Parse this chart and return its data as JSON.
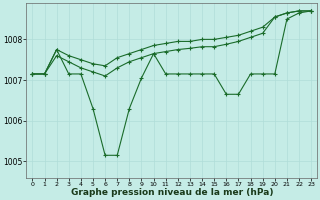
{
  "background_color": "#c5ece6",
  "grid_color": "#b0ddd8",
  "line_color": "#1a6b2a",
  "title": "Graphe pression niveau de la mer (hPa)",
  "title_fontsize": 6.5,
  "ylim": [
    1004.6,
    1008.9
  ],
  "xlim": [
    -0.5,
    23.5
  ],
  "yticks": [
    1005,
    1006,
    1007,
    1008
  ],
  "xticks": [
    0,
    1,
    2,
    3,
    4,
    5,
    6,
    7,
    8,
    9,
    10,
    11,
    12,
    13,
    14,
    15,
    16,
    17,
    18,
    19,
    20,
    21,
    22,
    23
  ],
  "line1_x": [
    0,
    1,
    2,
    3,
    4,
    5,
    6,
    7,
    8,
    9,
    10,
    11,
    12,
    13,
    14,
    15,
    16,
    17,
    18,
    19,
    20,
    21,
    22,
    23
  ],
  "line1_y": [
    1007.15,
    1007.15,
    1007.75,
    1007.6,
    1007.5,
    1007.4,
    1007.35,
    1007.55,
    1007.65,
    1007.75,
    1007.85,
    1007.9,
    1007.95,
    1007.95,
    1008.0,
    1008.0,
    1008.05,
    1008.1,
    1008.2,
    1008.3,
    1008.55,
    1008.65,
    1008.7,
    1008.7
  ],
  "line2_x": [
    0,
    1,
    2,
    3,
    4,
    5,
    6,
    7,
    8,
    9,
    10,
    11,
    12,
    13,
    14,
    15,
    16,
    17,
    18,
    19,
    20,
    21,
    22,
    23
  ],
  "line2_y": [
    1007.15,
    1007.15,
    1007.6,
    1007.45,
    1007.3,
    1007.2,
    1007.1,
    1007.3,
    1007.45,
    1007.55,
    1007.65,
    1007.7,
    1007.75,
    1007.78,
    1007.82,
    1007.82,
    1007.88,
    1007.95,
    1008.05,
    1008.15,
    1008.55,
    1008.65,
    1008.7,
    1008.7
  ],
  "line3_x": [
    0,
    1,
    2,
    3,
    4,
    5,
    6,
    7,
    8,
    9,
    10,
    11,
    12,
    13,
    14,
    15,
    16,
    17,
    18,
    19,
    20,
    21,
    22,
    23
  ],
  "line3_y": [
    1007.15,
    1007.15,
    1007.75,
    1007.15,
    1007.15,
    1006.3,
    1005.15,
    1005.15,
    1006.3,
    1007.05,
    1007.65,
    1007.15,
    1007.15,
    1007.15,
    1007.15,
    1007.15,
    1006.65,
    1006.65,
    1007.15,
    1007.15,
    1007.15,
    1008.5,
    1008.65,
    1008.7
  ]
}
